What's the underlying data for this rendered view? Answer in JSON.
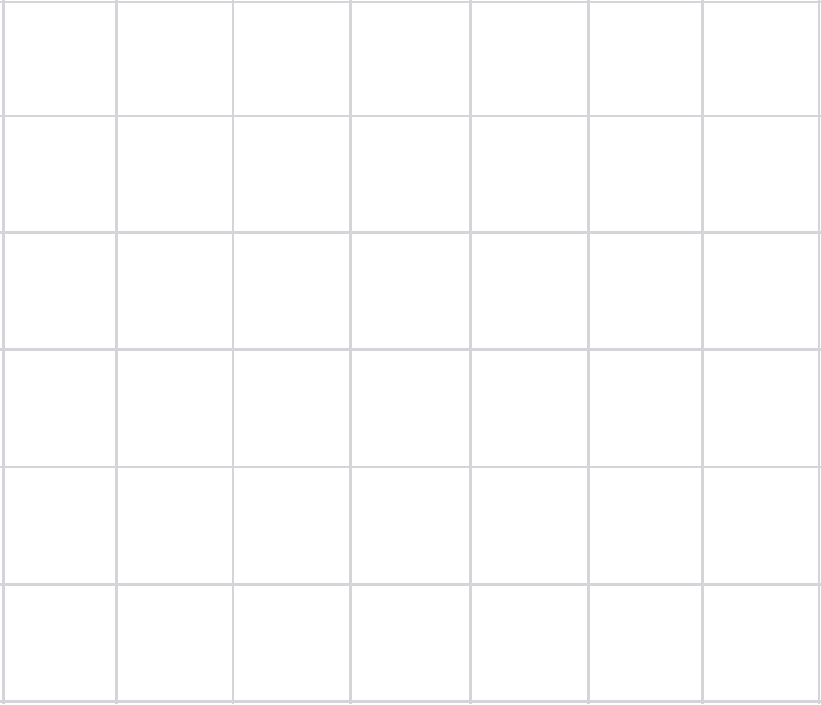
{
  "grid": {
    "rows": 6,
    "columns": 7,
    "line_color": "#d4d4d9",
    "background_color": "#ffffff"
  }
}
